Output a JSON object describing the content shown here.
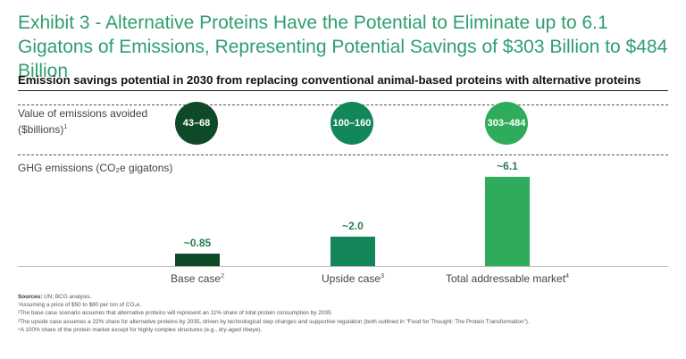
{
  "header": {
    "title": "Exhibit 3 - Alternative Proteins Have the Potential to Eliminate up to 6.1 Gigatons of Emissions, Representing Potential Savings of $303 Billion to $484 Billion",
    "subtitle": "Emission savings potential in 2030 from replacing conventional animal-based proteins with alternative proteins"
  },
  "value_section": {
    "label_line1": "Value of emissions avoided",
    "label_line2": "($billions)",
    "label_sup": "1"
  },
  "ghg_section": {
    "label": "GHG emissions (CO₂e gigatons)"
  },
  "chart_data": {
    "type": "bar",
    "title": "Emission savings potential in 2030 from replacing conventional animal-based proteins with alternative proteins",
    "ylabel": "GHG emissions (CO₂e gigatons)",
    "ylim": [
      0,
      6.1
    ],
    "grid": false,
    "categories": [
      "Base case",
      "Upside case",
      "Total addressable market"
    ],
    "category_sups": [
      "2",
      "3",
      "4"
    ],
    "values": [
      0.85,
      2.0,
      6.1
    ],
    "value_labels": [
      "~0.85",
      "~2.0",
      "~6.1"
    ],
    "emission_value_ranges": [
      "43–68",
      "100–160",
      "303–484"
    ],
    "colors": [
      "#0f4a28",
      "#13875a",
      "#2fab5c"
    ]
  },
  "footnotes": {
    "sources_label": "Sources:",
    "sources_text": " UN; BCG analysis.",
    "notes": [
      "¹Assuming a price of $50 to $80 per ton of CO₂e.",
      "²The base case scenario assumes that alternative proteins will represent an 11% share of total protein consumption by 2035.",
      "³The upside case assumes a 22% share for alternative proteins by 2035, driven by technological step changes and supportive regulation (both outlined in \"Food for Thought: The Protein Transformation\").",
      "⁴A 100% share of the protein market except for highly complex structures (e.g., dry-aged ribeye)."
    ]
  }
}
